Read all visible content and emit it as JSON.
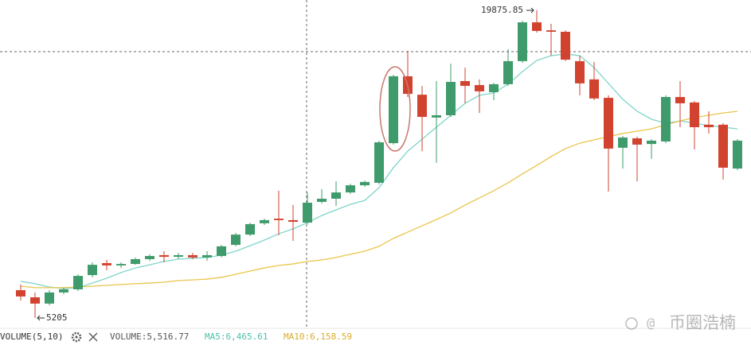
{
  "chart_data": {
    "type": "candlestick",
    "ylim": [
      4750,
      20365
    ],
    "up_color": "#3f9b6b",
    "down_color": "#d2432f",
    "open": [
      6530,
      6190,
      5890,
      6420,
      6570,
      7250,
      7820,
      7710,
      7780,
      8010,
      8200,
      8120,
      8200,
      8090,
      8160,
      8690,
      9180,
      9720,
      9940,
      9870,
      9750,
      10740,
      10890,
      11190,
      11530,
      11650,
      13540,
      16730,
      15850,
      14760,
      14870,
      16500,
      16310,
      15970,
      16350,
      17450,
      19300,
      18920,
      18850,
      17450,
      16580,
      15700,
      13320,
      13770,
      13500,
      13620,
      15740,
      15480,
      14420,
      14420,
      12330
    ],
    "high": [
      6800,
      6420,
      6530,
      6650,
      7290,
      7860,
      7970,
      7860,
      8090,
      8240,
      8390,
      8310,
      8310,
      8390,
      8690,
      9260,
      9750,
      9940,
      11270,
      10590,
      11190,
      11350,
      11720,
      11610,
      11760,
      13660,
      16800,
      17940,
      16270,
      16500,
      17330,
      17140,
      16580,
      16420,
      18020,
      19380,
      19875.85,
      19230,
      18920,
      17710,
      17410,
      15820,
      13880,
      13850,
      13730,
      15820,
      16500,
      15550,
      15060,
      14490,
      13730
    ],
    "low": [
      6040,
      5205,
      5810,
      6340,
      6490,
      7140,
      7480,
      7590,
      7740,
      7930,
      7860,
      8010,
      8010,
      7930,
      8090,
      8620,
      9110,
      9640,
      9150,
      8880,
      9680,
      10660,
      10550,
      11120,
      11460,
      11570,
      13470,
      15740,
      13160,
      12600,
      14790,
      15440,
      14980,
      15590,
      16270,
      17370,
      18810,
      17710,
      17450,
      15820,
      15590,
      11230,
      12330,
      11720,
      12790,
      13540,
      14300,
      13240,
      14000,
      11800,
      12250
    ],
    "close": [
      6230,
      5890,
      6420,
      6570,
      7210,
      7740,
      7710,
      7780,
      8010,
      8160,
      8120,
      8200,
      8090,
      8200,
      8620,
      9180,
      9680,
      9870,
      9870,
      9790,
      10700,
      10890,
      11190,
      11530,
      11690,
      13580,
      16730,
      15890,
      14790,
      14870,
      16460,
      16270,
      16010,
      16350,
      17450,
      19300,
      18890,
      18850,
      17520,
      16390,
      15670,
      13280,
      13810,
      13470,
      13660,
      15740,
      15440,
      14300,
      14300,
      12370,
      13660
    ],
    "lines": [
      {
        "color": "#7fd5c9",
        "values": [
          6950,
          6840,
          6680,
          6610,
          6650,
          6870,
          7100,
          7370,
          7590,
          7740,
          7900,
          8010,
          8050,
          8090,
          8200,
          8390,
          8650,
          8920,
          9220,
          9450,
          9750,
          10090,
          10360,
          10620,
          10810,
          11420,
          12370,
          13160,
          13730,
          14300,
          14870,
          15440,
          15820,
          15930,
          16350,
          16950,
          17480,
          17710,
          17790,
          17710,
          17140,
          16390,
          15630,
          15060,
          14680,
          14490,
          14600,
          14490,
          14380,
          14300,
          14220
        ]
      },
      {
        "color": "#e9c54a",
        "values": [
          6720,
          6650,
          6650,
          6650,
          6680,
          6720,
          6760,
          6800,
          6840,
          6870,
          6910,
          6990,
          7020,
          7060,
          7140,
          7290,
          7440,
          7590,
          7710,
          7780,
          7900,
          7970,
          8090,
          8240,
          8390,
          8620,
          9000,
          9300,
          9600,
          9900,
          10210,
          10590,
          10930,
          11270,
          11650,
          12070,
          12480,
          12900,
          13280,
          13540,
          13700,
          13850,
          14000,
          14110,
          14220,
          14420,
          14600,
          14760,
          14870,
          14980,
          15060
        ]
      }
    ]
  },
  "volume_bar": {
    "title": "VOLUME(5,10)",
    "volume": "VOLUME:5,516.77",
    "ma5": "MA5:6,465.61",
    "ma10": "MA10:6,158.59"
  },
  "watermark": "币圈浩楠"
}
